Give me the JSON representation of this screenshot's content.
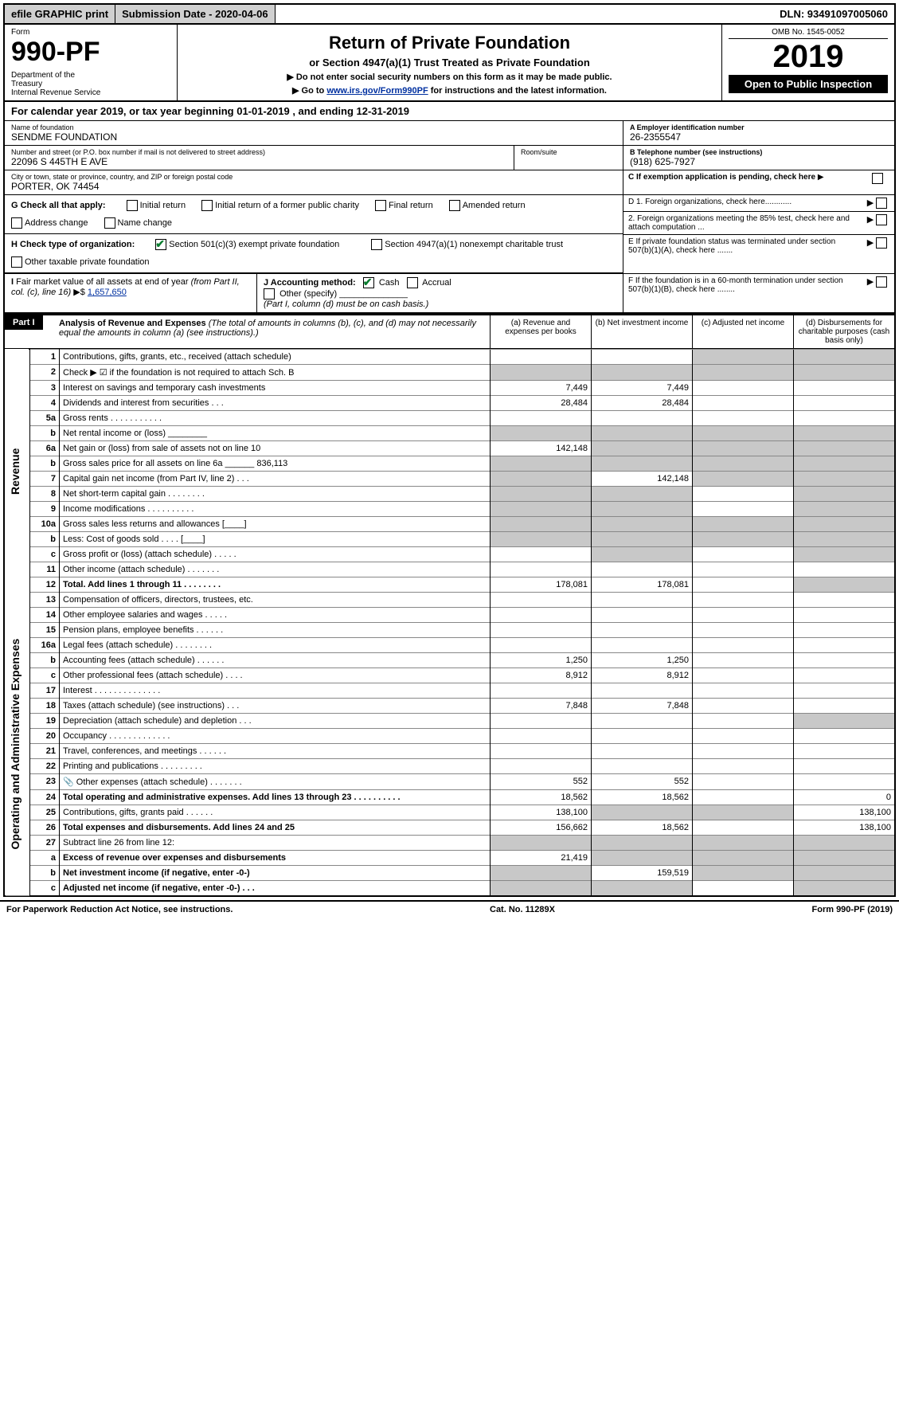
{
  "topbar": {
    "efile": "efile GRAPHIC print",
    "subdate_label": "Submission Date - 2020-04-06",
    "dln": "DLN: 93491097005060"
  },
  "header": {
    "form": "Form",
    "formno": "990-PF",
    "dept": "Department of the Treasury\nInternal Revenue Service",
    "title": "Return of Private Foundation",
    "sub": "or Section 4947(a)(1) Trust Treated as Private Foundation",
    "instr1": "▶ Do not enter social security numbers on this form as it may be made public.",
    "instr2_prefix": "▶ Go to ",
    "instr2_link": "www.irs.gov/Form990PF",
    "instr2_suffix": " for instructions and the latest information.",
    "omb": "OMB No. 1545-0052",
    "year": "2019",
    "open": "Open to Public Inspection"
  },
  "cal": "For calendar year 2019, or tax year beginning 01-01-2019               , and ending 12-31-2019",
  "info": {
    "name_label": "Name of foundation",
    "name": "SENDME FOUNDATION",
    "addr_label": "Number and street (or P.O. box number if mail is not delivered to street address)",
    "addr": "22096 S 445TH E AVE",
    "room_label": "Room/suite",
    "city_label": "City or town, state or province, country, and ZIP or foreign postal code",
    "city": "PORTER, OK  74454",
    "A_label": "A Employer identification number",
    "A_val": "26-2355547",
    "B_label": "B Telephone number (see instructions)",
    "B_val": "(918) 625-7927",
    "C_label": "C If exemption application is pending, check here",
    "D1": "D 1. Foreign organizations, check here............",
    "D2": "2. Foreign organizations meeting the 85% test, check here and attach computation ...",
    "E": "E  If private foundation status was terminated under section 507(b)(1)(A), check here .......",
    "F": "F  If the foundation is in a 60-month termination under section 507(b)(1)(B), check here ........"
  },
  "G": {
    "label": "G Check all that apply:",
    "opts": [
      "Initial return",
      "Initial return of a former public charity",
      "Final return",
      "Amended return",
      "Address change",
      "Name change"
    ]
  },
  "H": {
    "label": "H Check type of organization:",
    "opt1": "Section 501(c)(3) exempt private foundation",
    "opt2": "Section 4947(a)(1) nonexempt charitable trust",
    "opt3": "Other taxable private foundation"
  },
  "I": {
    "label": "I Fair market value of all assets at end of year (from Part II, col. (c), line 16) ▶$ ",
    "val": "1,657,650"
  },
  "J": {
    "label": "J Accounting method:",
    "cash": "Cash",
    "accrual": "Accrual",
    "other": "Other (specify)",
    "note": "(Part I, column (d) must be on cash basis.)"
  },
  "part1": {
    "title": "Part I",
    "heading": "Analysis of Revenue and Expenses",
    "note": "(The total of amounts in columns (b), (c), and (d) may not necessarily equal the amounts in column (a) (see instructions).)",
    "cols": {
      "a": "(a)   Revenue and expenses per books",
      "b": "(b)   Net investment income",
      "c": "(c)   Adjusted net income",
      "d": "(d)   Disbursements for charitable purposes (cash basis only)"
    }
  },
  "side": {
    "rev": "Revenue",
    "exp": "Operating and Administrative Expenses"
  },
  "rows": [
    {
      "n": "1",
      "d": "Contributions, gifts, grants, etc., received (attach schedule)",
      "a": "",
      "b": "",
      "c": "",
      "dsh": [
        "c",
        "d"
      ]
    },
    {
      "n": "2",
      "d": "Check ▶ ☑ if the foundation is not required to attach Sch. B",
      "a": "",
      "b": "",
      "dsh": [
        "a",
        "b",
        "c",
        "d"
      ],
      "bold": false
    },
    {
      "n": "3",
      "d": "Interest on savings and temporary cash investments",
      "a": "7,449",
      "b": "7,449"
    },
    {
      "n": "4",
      "d": "Dividends and interest from securities   .   .   .",
      "a": "28,484",
      "b": "28,484"
    },
    {
      "n": "5a",
      "d": "Gross rents       .   .   .   .   .   .   .   .   .   .   .",
      "a": "",
      "b": ""
    },
    {
      "n": "b",
      "d": "Net rental income or (loss) ________",
      "dsh": [
        "a",
        "b",
        "c",
        "d"
      ]
    },
    {
      "n": "6a",
      "d": "Net gain or (loss) from sale of assets not on line 10",
      "a": "142,148",
      "dsh": [
        "b",
        "c",
        "d"
      ]
    },
    {
      "n": "b",
      "d": "Gross sales price for all assets on line 6a ______ 836,113",
      "dsh": [
        "a",
        "b",
        "c",
        "d"
      ]
    },
    {
      "n": "7",
      "d": "Capital gain net income (from Part IV, line 2)    .   .   .",
      "b": "142,148",
      "dsh": [
        "a",
        "c",
        "d"
      ]
    },
    {
      "n": "8",
      "d": "Net short-term capital gain    .   .   .   .   .   .   .   .",
      "dsh": [
        "a",
        "b",
        "d"
      ]
    },
    {
      "n": "9",
      "d": "Income modifications   .   .   .   .   .   .   .   .   .   .",
      "dsh": [
        "a",
        "b",
        "d"
      ]
    },
    {
      "n": "10a",
      "d": "Gross sales less returns and allowances  [____]",
      "dsh": [
        "a",
        "b",
        "c",
        "d"
      ]
    },
    {
      "n": "b",
      "d": "Less: Cost of goods sold      .   .   .   .  [____]",
      "dsh": [
        "a",
        "b",
        "c",
        "d"
      ]
    },
    {
      "n": "c",
      "d": "Gross profit or (loss) (attach schedule)    .   .   .   .   .",
      "dsh": [
        "b",
        "d"
      ]
    },
    {
      "n": "11",
      "d": "Other income (attach schedule)    .   .   .   .   .   .   .",
      "a": "",
      "b": ""
    },
    {
      "n": "12",
      "d": "Total. Add lines 1 through 11    .   .   .   .   .   .   .   .",
      "a": "178,081",
      "b": "178,081",
      "bold": true,
      "dsh": [
        "d"
      ]
    },
    {
      "n": "13",
      "d": "Compensation of officers, directors, trustees, etc.",
      "a": "",
      "b": "",
      "c": "",
      "dv": ""
    },
    {
      "n": "14",
      "d": "Other employee salaries and wages     .   .   .   .   .",
      "a": "",
      "b": ""
    },
    {
      "n": "15",
      "d": "Pension plans, employee benefits    .   .   .   .   .   .",
      "a": "",
      "b": ""
    },
    {
      "n": "16a",
      "d": "Legal fees (attach schedule)   .   .   .   .   .   .   .   .",
      "a": "",
      "b": ""
    },
    {
      "n": "b",
      "d": "Accounting fees (attach schedule)    .   .   .   .   .   .",
      "a": "1,250",
      "b": "1,250"
    },
    {
      "n": "c",
      "d": "Other professional fees (attach schedule)    .   .   .   .",
      "a": "8,912",
      "b": "8,912"
    },
    {
      "n": "17",
      "d": "Interest   .   .   .   .   .   .   .   .   .   .   .   .   .   .",
      "a": "",
      "b": ""
    },
    {
      "n": "18",
      "d": "Taxes (attach schedule) (see instructions)     .   .   .",
      "a": "7,848",
      "b": "7,848"
    },
    {
      "n": "19",
      "d": "Depreciation (attach schedule) and depletion    .   .   .",
      "a": "",
      "b": "",
      "dsh": [
        "d"
      ]
    },
    {
      "n": "20",
      "d": "Occupancy   .   .   .   .   .   .   .   .   .   .   .   .   .",
      "a": "",
      "b": ""
    },
    {
      "n": "21",
      "d": "Travel, conferences, and meetings   .   .   .   .   .   .",
      "a": "",
      "b": ""
    },
    {
      "n": "22",
      "d": "Printing and publications   .   .   .   .   .   .   .   .   .",
      "a": "",
      "b": ""
    },
    {
      "n": "23",
      "d": "Other expenses (attach schedule)    .   .   .   .   .   .   .",
      "a": "552",
      "b": "552",
      "icon": true
    },
    {
      "n": "24",
      "d": "Total operating and administrative expenses. Add lines 13 through 23    .   .   .   .   .   .   .   .   .   .",
      "a": "18,562",
      "b": "18,562",
      "dv": "0",
      "bold": true
    },
    {
      "n": "25",
      "d": "Contributions, gifts, grants paid      .   .   .   .   .   .",
      "a": "138,100",
      "dv": "138,100",
      "dsh": [
        "b",
        "c"
      ]
    },
    {
      "n": "26",
      "d": "Total expenses and disbursements. Add lines 24 and 25",
      "a": "156,662",
      "b": "18,562",
      "dv": "138,100",
      "bold": true
    },
    {
      "n": "27",
      "d": "Subtract line 26 from line 12:",
      "dsh": [
        "a",
        "b",
        "c",
        "d"
      ]
    },
    {
      "n": "a",
      "d": "Excess of revenue over expenses and disbursements",
      "a": "21,419",
      "bold": true,
      "dsh": [
        "b",
        "c",
        "d"
      ]
    },
    {
      "n": "b",
      "d": "Net investment income (if negative, enter -0-)",
      "b": "159,519",
      "bold": true,
      "dsh": [
        "a",
        "c",
        "d"
      ]
    },
    {
      "n": "c",
      "d": "Adjusted net income (if negative, enter -0-)    .   .   .",
      "bold": true,
      "dsh": [
        "a",
        "b",
        "d"
      ]
    }
  ],
  "footer": {
    "left": "For Paperwork Reduction Act Notice, see instructions.",
    "mid": "Cat. No. 11289X",
    "right": "Form 990-PF (2019)"
  }
}
